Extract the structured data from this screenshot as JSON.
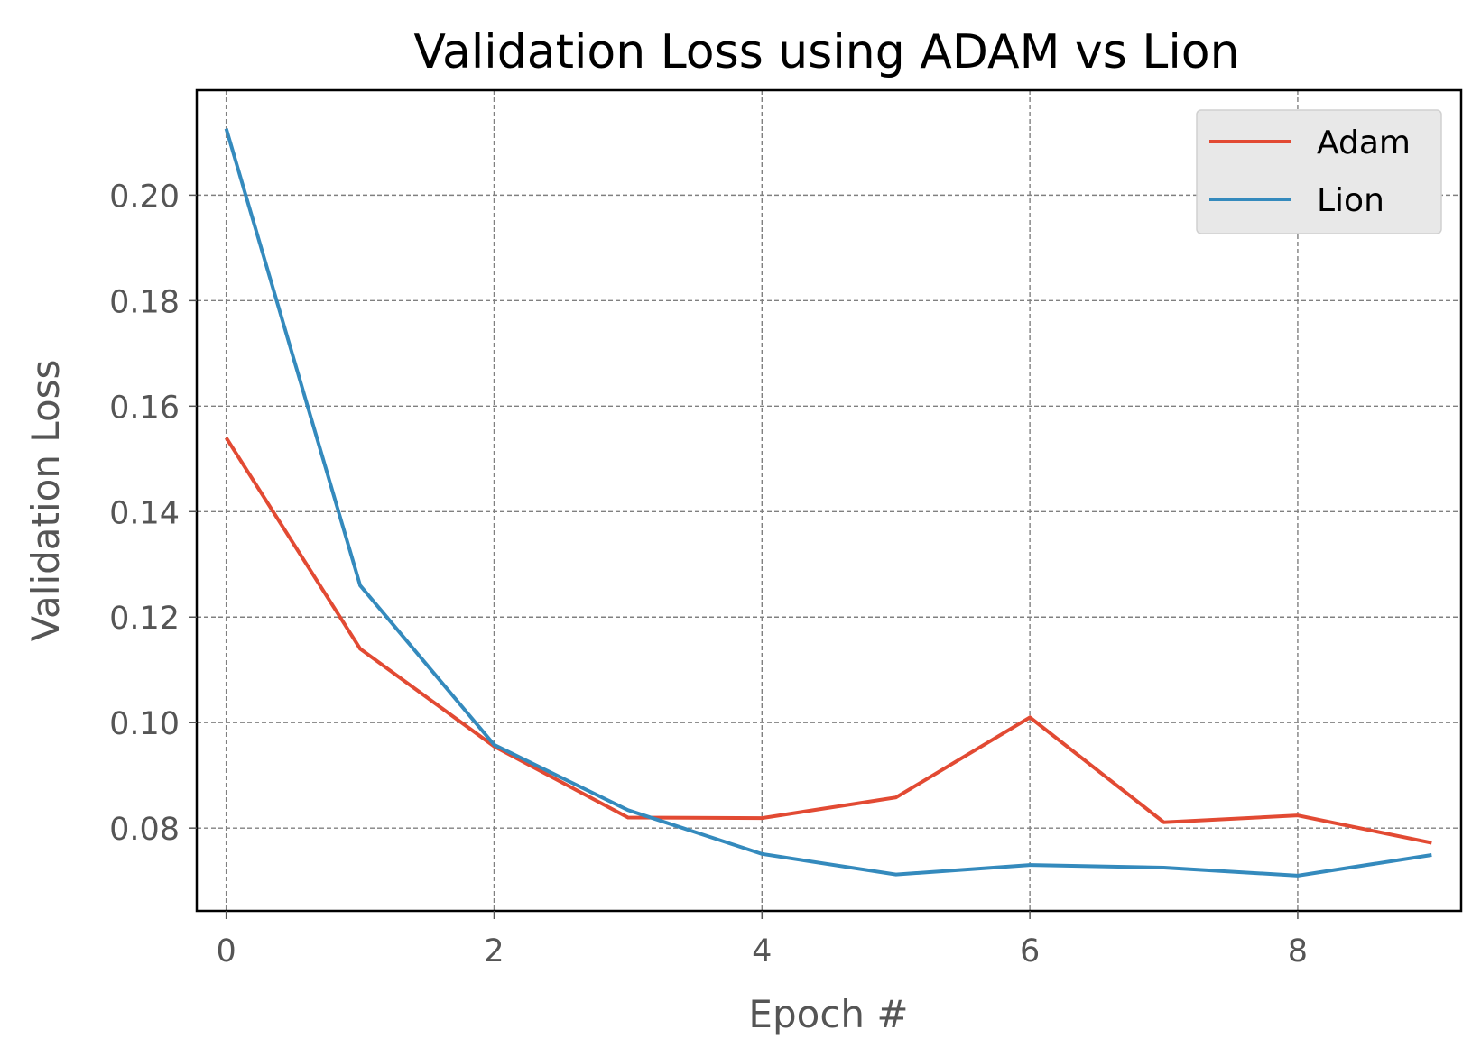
{
  "chart_data": {
    "type": "line",
    "title": "Validation Loss using ADAM vs Lion",
    "xlabel": "Epoch #",
    "ylabel": "Validation Loss",
    "x": [
      0,
      1,
      2,
      3,
      4,
      5,
      6,
      7,
      8,
      9
    ],
    "xlim": [
      -0.22,
      9.22
    ],
    "ylim": [
      0.0643,
      0.2199
    ],
    "xticks": [
      0,
      2,
      4,
      6,
      8
    ],
    "yticks": [
      0.08,
      0.1,
      0.12,
      0.14,
      0.16,
      0.18,
      0.2
    ],
    "xtick_labels": [
      "0",
      "2",
      "4",
      "6",
      "8"
    ],
    "ytick_labels": [
      "0.08",
      "0.10",
      "0.12",
      "0.14",
      "0.16",
      "0.18",
      "0.20"
    ],
    "grid": true,
    "legend_position": "top-right",
    "series": [
      {
        "name": "Adam",
        "color": "#e24a33",
        "values": [
          0.154,
          0.114,
          0.0955,
          0.082,
          0.0819,
          0.0858,
          0.101,
          0.0811,
          0.0824,
          0.0772
        ]
      },
      {
        "name": "Lion",
        "color": "#348abd",
        "values": [
          0.2126,
          0.126,
          0.0958,
          0.0834,
          0.0751,
          0.0712,
          0.073,
          0.0725,
          0.071,
          0.0749
        ]
      }
    ]
  }
}
